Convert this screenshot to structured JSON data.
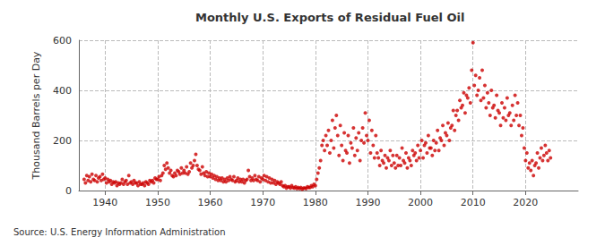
{
  "chart_data": {
    "type": "scatter",
    "title": "Monthly U.S. Exports of Residual Fuel Oil",
    "y_label": "Thousand Barrels per Day",
    "source": "Source: U.S. Energy Information Administration",
    "color": "#cc0000",
    "marker": "circle",
    "grid": true,
    "xlim": [
      1935,
      2030
    ],
    "xticks": [
      1940,
      1950,
      1960,
      1970,
      1980,
      1990,
      2000,
      2010,
      2020
    ],
    "ylim": [
      0,
      600
    ],
    "yticks": [
      0,
      200,
      400,
      600
    ],
    "x": [
      1936,
      1936.25,
      1936.5,
      1936.75,
      1937,
      1937.25,
      1937.5,
      1937.75,
      1938,
      1938.25,
      1938.5,
      1938.75,
      1939,
      1939.25,
      1939.5,
      1939.75,
      1940,
      1940.25,
      1940.5,
      1940.75,
      1941,
      1941.25,
      1941.5,
      1941.75,
      1942,
      1942.25,
      1942.5,
      1942.75,
      1943,
      1943.25,
      1943.5,
      1943.75,
      1944,
      1944.25,
      1944.5,
      1944.75,
      1945,
      1945.25,
      1945.5,
      1945.75,
      1946,
      1946.25,
      1946.5,
      1946.75,
      1947,
      1947.25,
      1947.5,
      1947.75,
      1948,
      1948.25,
      1948.5,
      1948.75,
      1949,
      1949.25,
      1949.5,
      1949.75,
      1950,
      1950.25,
      1950.5,
      1950.75,
      1951,
      1951.25,
      1951.5,
      1951.75,
      1952,
      1952.25,
      1952.5,
      1952.75,
      1953,
      1953.25,
      1953.5,
      1953.75,
      1954,
      1954.25,
      1954.5,
      1954.75,
      1955,
      1955.25,
      1955.5,
      1955.75,
      1956,
      1956.25,
      1956.5,
      1956.75,
      1957,
      1957.25,
      1957.5,
      1957.75,
      1958,
      1958.25,
      1958.5,
      1958.75,
      1959,
      1959.25,
      1959.5,
      1959.75,
      1960,
      1960.25,
      1960.5,
      1960.75,
      1961,
      1961.25,
      1961.5,
      1961.75,
      1962,
      1962.25,
      1962.5,
      1962.75,
      1963,
      1963.25,
      1963.5,
      1963.75,
      1964,
      1964.25,
      1964.5,
      1964.75,
      1965,
      1965.25,
      1965.5,
      1965.75,
      1966,
      1966.25,
      1966.5,
      1966.75,
      1967,
      1967.25,
      1967.5,
      1967.75,
      1968,
      1968.25,
      1968.5,
      1968.75,
      1969,
      1969.25,
      1969.5,
      1969.75,
      1970,
      1970.25,
      1970.5,
      1970.75,
      1971,
      1971.25,
      1971.5,
      1971.75,
      1972,
      1972.25,
      1972.5,
      1972.75,
      1973,
      1973.25,
      1973.5,
      1973.75,
      1974,
      1974.25,
      1974.5,
      1974.75,
      1975,
      1975.25,
      1975.5,
      1975.75,
      1976,
      1976.25,
      1976.5,
      1976.75,
      1977,
      1977.25,
      1977.5,
      1977.75,
      1978,
      1978.25,
      1978.5,
      1978.75,
      1979,
      1979.25,
      1979.5,
      1979.75,
      1980,
      1980.25,
      1980.5,
      1980.75,
      1981,
      1981.25,
      1981.5,
      1981.75,
      1982,
      1982.25,
      1982.5,
      1982.75,
      1983,
      1983.25,
      1983.5,
      1983.75,
      1984,
      1984.25,
      1984.5,
      1984.75,
      1985,
      1985.25,
      1985.5,
      1985.75,
      1986,
      1986.25,
      1986.5,
      1986.75,
      1987,
      1987.25,
      1987.5,
      1987.75,
      1988,
      1988.25,
      1988.5,
      1988.75,
      1989,
      1989.25,
      1989.5,
      1989.75,
      1990,
      1990.25,
      1990.5,
      1990.75,
      1991,
      1991.25,
      1991.5,
      1991.75,
      1992,
      1992.25,
      1992.5,
      1992.75,
      1993,
      1993.25,
      1993.5,
      1993.75,
      1994,
      1994.25,
      1994.5,
      1994.75,
      1995,
      1995.25,
      1995.5,
      1995.75,
      1996,
      1996.25,
      1996.5,
      1996.75,
      1997,
      1997.25,
      1997.5,
      1997.75,
      1998,
      1998.25,
      1998.5,
      1998.75,
      1999,
      1999.25,
      1999.5,
      1999.75,
      2000,
      2000.25,
      2000.5,
      2000.75,
      2001,
      2001.25,
      2001.5,
      2001.75,
      2002,
      2002.25,
      2002.5,
      2002.75,
      2003,
      2003.25,
      2003.5,
      2003.75,
      2004,
      2004.25,
      2004.5,
      2004.75,
      2005,
      2005.25,
      2005.5,
      2005.75,
      2006,
      2006.25,
      2006.5,
      2006.75,
      2007,
      2007.25,
      2007.5,
      2007.75,
      2008,
      2008.25,
      2008.5,
      2008.75,
      2009,
      2009.25,
      2009.5,
      2009.75,
      2010,
      2010.25,
      2010.5,
      2010.75,
      2011,
      2011.25,
      2011.5,
      2011.75,
      2012,
      2012.25,
      2012.5,
      2012.75,
      2013,
      2013.25,
      2013.5,
      2013.75,
      2014,
      2014.25,
      2014.5,
      2014.75,
      2015,
      2015.25,
      2015.5,
      2015.75,
      2016,
      2016.25,
      2016.5,
      2016.75,
      2017,
      2017.25,
      2017.5,
      2017.75,
      2018,
      2018.25,
      2018.5,
      2018.75,
      2019,
      2019.25,
      2019.5,
      2019.75,
      2020,
      2020.25,
      2020.5,
      2020.75,
      2021,
      2021.25,
      2021.5,
      2021.75,
      2022,
      2022.25,
      2022.5,
      2022.75,
      2023,
      2023.25,
      2023.5,
      2023.75,
      2024,
      2024.25,
      2024.5,
      2024.75
    ],
    "values": [
      45,
      30,
      60,
      40,
      55,
      35,
      65,
      45,
      40,
      60,
      35,
      50,
      55,
      40,
      65,
      45,
      50,
      30,
      45,
      35,
      40,
      25,
      35,
      30,
      35,
      20,
      30,
      25,
      30,
      45,
      25,
      35,
      40,
      25,
      60,
      30,
      35,
      25,
      40,
      30,
      30,
      20,
      35,
      25,
      25,
      30,
      20,
      35,
      30,
      25,
      40,
      35,
      40,
      30,
      50,
      45,
      45,
      55,
      40,
      60,
      70,
      100,
      85,
      110,
      90,
      70,
      80,
      60,
      55,
      70,
      60,
      80,
      75,
      65,
      90,
      70,
      80,
      70,
      95,
      65,
      75,
      110,
      90,
      100,
      120,
      145,
      100,
      85,
      80,
      65,
      95,
      70,
      60,
      75,
      55,
      70,
      55,
      65,
      50,
      60,
      45,
      55,
      40,
      50,
      40,
      50,
      35,
      45,
      35,
      50,
      40,
      55,
      45,
      40,
      55,
      35,
      40,
      50,
      35,
      45,
      35,
      45,
      30,
      40,
      45,
      80,
      55,
      40,
      50,
      40,
      60,
      45,
      40,
      55,
      35,
      50,
      45,
      60,
      40,
      55,
      35,
      50,
      30,
      45,
      30,
      40,
      25,
      35,
      30,
      25,
      35,
      20,
      15,
      20,
      10,
      15,
      15,
      10,
      20,
      12,
      10,
      15,
      8,
      12,
      8,
      12,
      5,
      10,
      10,
      8,
      15,
      12,
      12,
      20,
      15,
      25,
      20,
      45,
      70,
      90,
      120,
      180,
      200,
      160,
      220,
      180,
      240,
      150,
      200,
      280,
      170,
      250,
      300,
      220,
      140,
      260,
      180,
      120,
      230,
      160,
      150,
      220,
      110,
      190,
      170,
      250,
      140,
      210,
      160,
      230,
      120,
      200,
      250,
      190,
      310,
      220,
      200,
      280,
      150,
      240,
      180,
      130,
      220,
      150,
      130,
      100,
      160,
      120,
      110,
      140,
      90,
      130,
      120,
      160,
      100,
      140,
      110,
      90,
      140,
      100,
      130,
      100,
      170,
      120,
      110,
      150,
      90,
      130,
      120,
      100,
      160,
      140,
      150,
      120,
      180,
      130,
      160,
      200,
      130,
      180,
      190,
      150,
      220,
      170,
      170,
      140,
      200,
      160,
      190,
      240,
      160,
      210,
      200,
      260,
      180,
      230,
      220,
      270,
      200,
      250,
      260,
      320,
      240,
      300,
      320,
      280,
      360,
      330,
      340,
      390,
      310,
      380,
      370,
      410,
      350,
      480,
      590,
      420,
      460,
      380,
      400,
      450,
      360,
      480,
      370,
      420,
      330,
      390,
      350,
      300,
      400,
      330,
      340,
      290,
      380,
      320,
      310,
      260,
      350,
      290,
      330,
      280,
      370,
      300,
      310,
      260,
      340,
      280,
      380,
      300,
      350,
      260,
      300,
      220,
      250,
      170,
      120,
      150,
      90,
      110,
      80,
      120,
      60,
      100,
      110,
      150,
      90,
      130,
      170,
      120,
      140,
      180,
      150,
      120,
      160,
      130
    ]
  }
}
